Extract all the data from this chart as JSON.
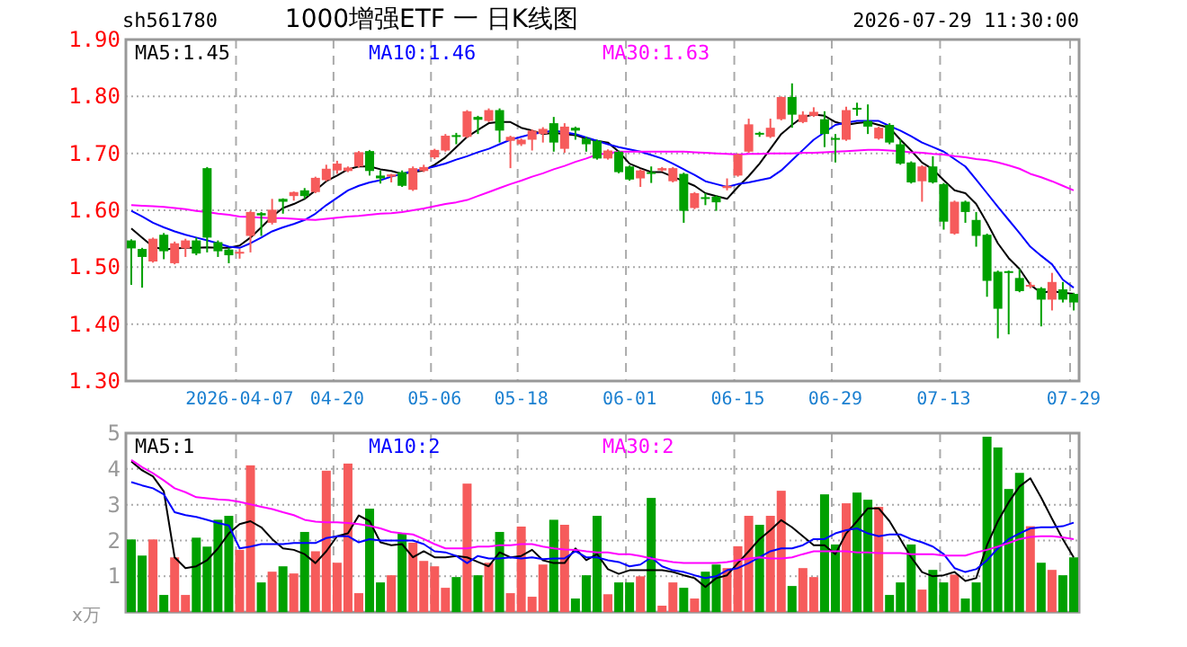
{
  "chart_data": [
    {
      "type": "candlestick",
      "title": "1000增强ETF 一 日K线图",
      "annotations": [
        "sh561780",
        "2026-07-29 11:30:00"
      ],
      "categories": [
        null,
        null,
        null,
        null,
        null,
        null,
        null,
        null,
        null,
        null,
        "2026-04-07",
        null,
        null,
        null,
        null,
        null,
        null,
        null,
        null,
        "04-20",
        null,
        null,
        null,
        null,
        null,
        null,
        null,
        null,
        "05-06",
        null,
        null,
        null,
        null,
        null,
        null,
        null,
        "05-18",
        null,
        null,
        null,
        null,
        null,
        null,
        null,
        null,
        null,
        "06-01",
        null,
        null,
        null,
        null,
        null,
        null,
        null,
        null,
        null,
        "06-15",
        null,
        null,
        null,
        null,
        null,
        null,
        null,
        null,
        "06-29",
        null,
        null,
        null,
        null,
        null,
        null,
        null,
        null,
        null,
        "07-13",
        null,
        null,
        null,
        null,
        null,
        null,
        null,
        null,
        null,
        null,
        null,
        "07-29"
      ],
      "ohlc": [
        [
          1.547,
          1.549,
          1.469,
          1.533
        ],
        [
          1.532,
          1.534,
          1.464,
          1.518
        ],
        [
          1.51,
          1.552,
          1.508,
          1.55
        ],
        [
          1.557,
          1.56,
          1.514,
          1.528
        ],
        [
          1.507,
          1.545,
          1.505,
          1.542
        ],
        [
          1.533,
          1.55,
          1.518,
          1.547
        ],
        [
          1.547,
          1.552,
          1.521,
          1.524
        ],
        [
          1.674,
          1.676,
          1.526,
          1.552
        ],
        [
          1.544,
          1.547,
          1.518,
          1.528
        ],
        [
          1.531,
          1.534,
          1.507,
          1.521
        ],
        [
          1.524,
          1.532,
          1.515,
          1.527
        ],
        [
          1.555,
          1.599,
          1.526,
          1.597
        ],
        [
          1.595,
          1.597,
          1.555,
          1.591
        ],
        [
          1.578,
          1.62,
          1.575,
          1.601
        ],
        [
          1.62,
          1.621,
          1.594,
          1.615
        ],
        [
          1.625,
          1.633,
          1.617,
          1.632
        ],
        [
          1.635,
          1.639,
          1.62,
          1.625
        ],
        [
          1.632,
          1.659,
          1.63,
          1.657
        ],
        [
          1.653,
          1.68,
          1.651,
          1.673
        ],
        [
          1.67,
          1.687,
          1.664,
          1.682
        ],
        [
          1.669,
          1.677,
          1.667,
          1.675
        ],
        [
          1.677,
          1.704,
          1.675,
          1.702
        ],
        [
          1.704,
          1.706,
          1.661,
          1.669
        ],
        [
          1.661,
          1.67,
          1.647,
          1.656
        ],
        [
          1.659,
          1.664,
          1.649,
          1.663
        ],
        [
          1.667,
          1.67,
          1.641,
          1.643
        ],
        [
          1.636,
          1.677,
          1.634,
          1.674
        ],
        [
          1.669,
          1.68,
          1.667,
          1.676
        ],
        [
          1.693,
          1.708,
          1.69,
          1.706
        ],
        [
          1.705,
          1.734,
          1.703,
          1.731
        ],
        [
          1.732,
          1.736,
          1.716,
          1.73
        ],
        [
          1.729,
          1.776,
          1.727,
          1.774
        ],
        [
          1.764,
          1.766,
          1.734,
          1.759
        ],
        [
          1.757,
          1.779,
          1.755,
          1.776
        ],
        [
          1.776,
          1.779,
          1.719,
          1.74
        ],
        [
          1.722,
          1.731,
          1.674,
          1.729
        ],
        [
          1.716,
          1.726,
          1.713,
          1.724
        ],
        [
          1.724,
          1.742,
          1.705,
          1.74
        ],
        [
          1.734,
          1.746,
          1.719,
          1.743
        ],
        [
          1.753,
          1.764,
          1.703,
          1.719
        ],
        [
          1.708,
          1.753,
          1.701,
          1.747
        ],
        [
          1.745,
          1.747,
          1.724,
          1.74
        ],
        [
          1.726,
          1.729,
          1.703,
          1.716
        ],
        [
          1.722,
          1.724,
          1.689,
          1.691
        ],
        [
          1.691,
          1.707,
          1.689,
          1.705
        ],
        [
          1.703,
          1.705,
          1.665,
          1.667
        ],
        [
          1.677,
          1.679,
          1.652,
          1.654
        ],
        [
          1.656,
          1.672,
          1.641,
          1.67
        ],
        [
          1.667,
          1.677,
          1.648,
          1.664
        ],
        [
          1.67,
          1.676,
          1.668,
          1.674
        ],
        [
          1.651,
          1.676,
          1.649,
          1.674
        ],
        [
          1.664,
          1.666,
          1.578,
          1.599
        ],
        [
          1.604,
          1.632,
          1.602,
          1.63
        ],
        [
          1.623,
          1.63,
          1.609,
          1.62
        ],
        [
          1.624,
          1.626,
          1.599,
          1.614
        ],
        [
          1.639,
          1.656,
          1.635,
          1.643
        ],
        [
          1.661,
          1.7,
          1.659,
          1.698
        ],
        [
          1.703,
          1.761,
          1.701,
          1.751
        ],
        [
          1.736,
          1.738,
          1.729,
          1.734
        ],
        [
          1.729,
          1.761,
          1.727,
          1.745
        ],
        [
          1.76,
          1.8,
          1.758,
          1.799
        ],
        [
          1.799,
          1.823,
          1.745,
          1.768
        ],
        [
          1.755,
          1.774,
          1.753,
          1.768
        ],
        [
          1.766,
          1.781,
          1.764,
          1.773
        ],
        [
          1.76,
          1.774,
          1.711,
          1.734
        ],
        [
          1.727,
          1.734,
          1.684,
          1.725
        ],
        [
          1.724,
          1.782,
          1.722,
          1.776
        ],
        [
          1.78,
          1.789,
          1.766,
          1.778
        ],
        [
          1.757,
          1.786,
          1.734,
          1.747
        ],
        [
          1.726,
          1.747,
          1.724,
          1.745
        ],
        [
          1.75,
          1.753,
          1.716,
          1.719
        ],
        [
          1.716,
          1.725,
          1.68,
          1.682
        ],
        [
          1.684,
          1.686,
          1.647,
          1.649
        ],
        [
          1.651,
          1.679,
          1.615,
          1.677
        ],
        [
          1.677,
          1.695,
          1.647,
          1.649
        ],
        [
          1.646,
          1.648,
          1.566,
          1.58
        ],
        [
          1.559,
          1.617,
          1.557,
          1.615
        ],
        [
          1.615,
          1.617,
          1.578,
          1.597
        ],
        [
          1.583,
          1.597,
          1.536,
          1.555
        ],
        [
          1.557,
          1.559,
          1.448,
          1.476
        ],
        [
          1.492,
          1.494,
          1.375,
          1.427
        ],
        [
          1.493,
          1.494,
          1.382,
          1.49
        ],
        [
          1.481,
          1.497,
          1.456,
          1.458
        ],
        [
          1.466,
          1.474,
          1.463,
          1.469
        ],
        [
          1.463,
          1.465,
          1.396,
          1.443
        ],
        [
          1.443,
          1.49,
          1.424,
          1.474
        ],
        [
          1.461,
          1.474,
          1.438,
          1.443
        ],
        [
          1.453,
          1.455,
          1.424,
          1.438
        ]
      ],
      "colors": [
        "#00a000",
        "#00a000",
        "#f65b5b",
        "#00a000",
        "#f65b5b",
        "#f65b5b",
        "#00a000",
        "#00a000",
        "#00a000",
        "#00a000",
        "#f65b5b",
        "#f65b5b",
        "#00a000",
        "#f65b5b",
        "#00a000",
        "#f65b5b",
        "#00a000",
        "#f65b5b",
        "#f65b5b",
        "#f65b5b",
        "#f65b5b",
        "#f65b5b",
        "#00a000",
        "#00a000",
        "#f65b5b",
        "#00a000",
        "#f65b5b",
        "#f65b5b",
        "#f65b5b",
        "#f65b5b",
        "#00a000",
        "#f65b5b",
        "#00a000",
        "#f65b5b",
        "#00a000",
        "#f65b5b",
        "#f65b5b",
        "#f65b5b",
        "#f65b5b",
        "#00a000",
        "#f65b5b",
        "#00a000",
        "#00a000",
        "#00a000",
        "#f65b5b",
        "#00a000",
        "#00a000",
        "#f65b5b",
        "#00a000",
        "#f65b5b",
        "#f65b5b",
        "#00a000",
        "#f65b5b",
        "#00a000",
        "#00a000",
        "#f65b5b",
        "#f65b5b",
        "#f65b5b",
        "#00a000",
        "#f65b5b",
        "#f65b5b",
        "#00a000",
        "#f65b5b",
        "#f65b5b",
        "#00a000",
        "#00a000",
        "#f65b5b",
        "#00a000",
        "#00a000",
        "#f65b5b",
        "#00a000",
        "#00a000",
        "#00a000",
        "#f65b5b",
        "#00a000",
        "#00a000",
        "#f65b5b",
        "#00a000",
        "#00a000",
        "#00a000",
        "#00a000",
        "#00a000",
        "#00a000",
        "#f65b5b",
        "#00a000",
        "#f65b5b",
        "#00a000",
        "#00a000"
      ],
      "series": [
        {
          "type": "line",
          "name": "MA5:1.45",
          "color": "#000000",
          "values": [
            1.568,
            1.552,
            1.536,
            1.531,
            1.533,
            1.534,
            1.534,
            1.535,
            1.534,
            1.534,
            1.538,
            1.552,
            1.57,
            1.589,
            1.604,
            1.611,
            1.62,
            1.635,
            1.651,
            1.661,
            1.672,
            1.677,
            1.677,
            1.672,
            1.669,
            1.664,
            1.667,
            1.67,
            1.68,
            1.693,
            1.711,
            1.729,
            1.741,
            1.753,
            1.755,
            1.755,
            1.745,
            1.74,
            1.734,
            1.736,
            1.734,
            1.732,
            1.726,
            1.722,
            1.719,
            1.703,
            1.682,
            1.674,
            1.667,
            1.667,
            1.659,
            1.651,
            1.643,
            1.63,
            1.625,
            1.62,
            1.641,
            1.66,
            1.682,
            1.708,
            1.734,
            1.75,
            1.764,
            1.768,
            1.766,
            1.755,
            1.75,
            1.753,
            1.755,
            1.75,
            1.745,
            1.724,
            1.705,
            1.684,
            1.672,
            1.653,
            1.635,
            1.63,
            1.611,
            1.578,
            1.542,
            1.516,
            1.497,
            1.469,
            1.455,
            1.458,
            1.455,
            1.453
          ]
        },
        {
          "type": "line",
          "name": "MA10:1.46",
          "color": "#0000ff",
          "values": [
            1.599,
            1.589,
            1.578,
            1.57,
            1.563,
            1.557,
            1.552,
            1.547,
            1.542,
            1.536,
            1.534,
            1.542,
            1.552,
            1.563,
            1.57,
            1.576,
            1.583,
            1.594,
            1.609,
            1.622,
            1.635,
            1.643,
            1.649,
            1.653,
            1.659,
            1.664,
            1.669,
            1.672,
            1.677,
            1.682,
            1.689,
            1.695,
            1.702,
            1.708,
            1.716,
            1.724,
            1.729,
            1.734,
            1.737,
            1.74,
            1.737,
            1.734,
            1.728,
            1.722,
            1.716,
            1.711,
            1.707,
            1.703,
            1.697,
            1.691,
            1.682,
            1.672,
            1.662,
            1.651,
            1.646,
            1.641,
            1.646,
            1.649,
            1.653,
            1.657,
            1.67,
            1.688,
            1.706,
            1.724,
            1.737,
            1.75,
            1.754,
            1.757,
            1.757,
            1.757,
            1.748,
            1.74,
            1.73,
            1.719,
            1.711,
            1.703,
            1.69,
            1.677,
            1.654,
            1.63,
            1.606,
            1.583,
            1.56,
            1.536,
            1.52,
            1.505,
            1.478,
            1.464
          ]
        },
        {
          "type": "line",
          "name": "MA30:1.63",
          "color": "#ff00ff",
          "values": [
            1.609,
            1.608,
            1.607,
            1.606,
            1.604,
            1.602,
            1.599,
            1.597,
            1.594,
            1.592,
            1.589,
            1.588,
            1.587,
            1.586,
            1.586,
            1.585,
            1.584,
            1.583,
            1.585,
            1.587,
            1.589,
            1.59,
            1.592,
            1.594,
            1.595,
            1.597,
            1.6,
            1.603,
            1.607,
            1.611,
            1.614,
            1.618,
            1.625,
            1.632,
            1.639,
            1.646,
            1.652,
            1.659,
            1.665,
            1.672,
            1.678,
            1.685,
            1.691,
            1.698,
            1.7,
            1.703,
            1.703,
            1.703,
            1.703,
            1.703,
            1.703,
            1.703,
            1.702,
            1.701,
            1.7,
            1.699,
            1.698,
            1.699,
            1.699,
            1.7,
            1.7,
            1.7,
            1.701,
            1.701,
            1.702,
            1.703,
            1.704,
            1.705,
            1.706,
            1.706,
            1.705,
            1.704,
            1.702,
            1.701,
            1.699,
            1.698,
            1.695,
            1.693,
            1.69,
            1.688,
            1.684,
            1.679,
            1.673,
            1.664,
            1.658,
            1.651,
            1.643,
            1.635
          ]
        }
      ],
      "ylim": [
        1.3,
        1.9
      ],
      "yticks": [
        {
          "value": 1.3,
          "label": "1.30"
        },
        {
          "value": 1.4,
          "label": "1.40"
        },
        {
          "value": 1.5,
          "label": "1.50"
        },
        {
          "value": 1.6,
          "label": "1.60"
        },
        {
          "value": 1.7,
          "label": "1.70"
        },
        {
          "value": 1.8,
          "label": "1.80"
        },
        {
          "value": 1.9,
          "label": "1.90"
        }
      ],
      "grid": true,
      "legend": "top"
    },
    {
      "type": "bar",
      "ylabel": "x万",
      "tick_labels": "y",
      "categories": [
        null,
        null,
        null,
        null,
        null,
        null,
        null,
        null,
        null,
        null,
        null,
        null,
        null,
        null,
        null,
        null,
        null,
        null,
        null,
        null,
        null,
        null,
        null,
        null,
        null,
        null,
        null,
        null,
        null,
        null,
        null,
        null,
        null,
        null,
        null,
        null,
        null,
        null,
        null,
        null,
        null,
        null,
        null,
        null,
        null,
        null,
        null,
        null,
        null,
        null,
        null,
        null,
        null,
        null,
        null,
        null,
        null,
        null,
        null,
        null,
        null,
        null,
        null,
        null,
        null,
        null,
        null,
        null,
        null,
        null,
        null,
        null,
        null,
        null,
        null,
        null,
        null,
        null,
        null,
        null,
        null,
        null,
        null,
        null,
        null,
        null,
        null,
        null
      ],
      "values": [
        2.03,
        1.58,
        2.03,
        0.48,
        1.53,
        0.48,
        2.08,
        1.83,
        2.58,
        2.69,
        1.74,
        4.1,
        0.83,
        1.13,
        1.28,
        1.08,
        2.24,
        1.7,
        3.95,
        1.38,
        4.15,
        0.53,
        2.89,
        0.83,
        1.03,
        2.19,
        1.94,
        1.43,
        1.28,
        0.68,
        0.98,
        3.59,
        1.03,
        1.38,
        2.24,
        0.53,
        2.39,
        0.43,
        1.33,
        2.58,
        2.44,
        0.38,
        1.03,
        2.69,
        0.5,
        0.83,
        0.83,
        1.0,
        3.19,
        0.18,
        0.83,
        0.68,
        0.38,
        1.13,
        1.33,
        1.23,
        1.84,
        2.69,
        2.44,
        2.69,
        3.39,
        0.73,
        1.23,
        0.98,
        3.29,
        1.89,
        3.04,
        3.34,
        3.14,
        2.94,
        0.48,
        0.83,
        1.89,
        0.63,
        1.18,
        0.83,
        1.05,
        0.38,
        0.83,
        4.9,
        4.6,
        3.44,
        3.89,
        2.4,
        1.38,
        1.18,
        1.03,
        1.53
      ],
      "colors": [
        "#00a000",
        "#00a000",
        "#f65b5b",
        "#00a000",
        "#f65b5b",
        "#f65b5b",
        "#00a000",
        "#00a000",
        "#00a000",
        "#00a000",
        "#f65b5b",
        "#f65b5b",
        "#00a000",
        "#f65b5b",
        "#00a000",
        "#f65b5b",
        "#00a000",
        "#f65b5b",
        "#f65b5b",
        "#f65b5b",
        "#f65b5b",
        "#f65b5b",
        "#00a000",
        "#00a000",
        "#f65b5b",
        "#00a000",
        "#f65b5b",
        "#f65b5b",
        "#f65b5b",
        "#f65b5b",
        "#00a000",
        "#f65b5b",
        "#00a000",
        "#f65b5b",
        "#00a000",
        "#f65b5b",
        "#f65b5b",
        "#f65b5b",
        "#f65b5b",
        "#00a000",
        "#f65b5b",
        "#00a000",
        "#00a000",
        "#00a000",
        "#f65b5b",
        "#00a000",
        "#00a000",
        "#f65b5b",
        "#00a000",
        "#f65b5b",
        "#f65b5b",
        "#00a000",
        "#f65b5b",
        "#00a000",
        "#00a000",
        "#f65b5b",
        "#f65b5b",
        "#f65b5b",
        "#00a000",
        "#f65b5b",
        "#f65b5b",
        "#00a000",
        "#f65b5b",
        "#f65b5b",
        "#00a000",
        "#00a000",
        "#f65b5b",
        "#00a000",
        "#00a000",
        "#f65b5b",
        "#00a000",
        "#00a000",
        "#00a000",
        "#f65b5b",
        "#00a000",
        "#00a000",
        "#f65b5b",
        "#00a000",
        "#00a000",
        "#00a000",
        "#00a000",
        "#00a000",
        "#00a000",
        "#f65b5b",
        "#00a000",
        "#f65b5b",
        "#00a000",
        "#00a000"
      ],
      "series": [
        {
          "type": "line",
          "name": "MA5:1",
          "color": "#000000",
          "values": [
            4.21,
            3.96,
            3.79,
            3.37,
            1.53,
            1.23,
            1.28,
            1.45,
            1.78,
            2.2,
            2.46,
            2.54,
            2.37,
            2.04,
            1.78,
            1.74,
            1.62,
            1.37,
            1.7,
            2.12,
            2.2,
            2.7,
            2.54,
            1.95,
            1.87,
            1.9,
            1.53,
            1.7,
            1.53,
            1.53,
            1.57,
            1.53,
            1.4,
            1.28,
            1.67,
            1.53,
            1.57,
            1.74,
            1.45,
            1.37,
            1.37,
            1.78,
            1.45,
            1.62,
            1.2,
            1.07,
            1.17,
            1.17,
            1.17,
            1.17,
            1.12,
            1.03,
            0.95,
            0.7,
            0.95,
            1.03,
            1.37,
            1.7,
            2.04,
            2.29,
            2.57,
            2.37,
            2.12,
            1.87,
            1.87,
            1.62,
            2.2,
            2.54,
            2.9,
            2.9,
            2.54,
            2.04,
            1.53,
            1.12,
            1.0,
            1.03,
            1.12,
            0.87,
            0.95,
            1.87,
            2.54,
            3.07,
            3.51,
            3.74,
            3.2,
            2.61,
            2.04,
            1.53
          ]
        },
        {
          "type": "line",
          "name": "MA10:2",
          "color": "#0000ff",
          "values": [
            3.63,
            3.54,
            3.46,
            3.29,
            2.79,
            2.71,
            2.66,
            2.58,
            2.49,
            2.42,
            1.78,
            1.83,
            1.9,
            1.9,
            1.9,
            1.93,
            1.93,
            1.93,
            2.07,
            2.12,
            2.12,
            1.95,
            2.04,
            2.0,
            2.0,
            2.0,
            2.0,
            1.9,
            1.7,
            1.67,
            1.57,
            1.37,
            1.57,
            1.5,
            1.5,
            1.53,
            1.5,
            1.53,
            1.48,
            1.5,
            1.5,
            1.7,
            1.53,
            1.53,
            1.45,
            1.4,
            1.28,
            1.33,
            1.53,
            1.28,
            1.17,
            1.12,
            1.03,
            0.95,
            1.0,
            1.17,
            1.23,
            1.37,
            1.53,
            1.7,
            1.78,
            1.78,
            1.87,
            2.04,
            2.04,
            2.2,
            2.29,
            2.34,
            2.2,
            2.12,
            2.17,
            2.17,
            2.04,
            1.95,
            1.83,
            1.62,
            1.23,
            1.12,
            1.2,
            1.45,
            1.78,
            2.04,
            2.2,
            2.34,
            2.37,
            2.37,
            2.4,
            2.5
          ]
        },
        {
          "type": "line",
          "name": "MA30:2",
          "color": "#ff00ff",
          "values": [
            4.25,
            4.05,
            3.88,
            3.68,
            3.46,
            3.35,
            3.21,
            3.18,
            3.15,
            3.13,
            3.08,
            3.01,
            2.94,
            2.88,
            2.79,
            2.71,
            2.58,
            2.53,
            2.51,
            2.51,
            2.49,
            2.46,
            2.41,
            2.34,
            2.24,
            2.2,
            2.17,
            2.04,
            1.9,
            1.78,
            1.78,
            1.78,
            1.83,
            1.83,
            1.87,
            1.87,
            1.9,
            1.9,
            1.83,
            1.78,
            1.75,
            1.74,
            1.7,
            1.67,
            1.67,
            1.62,
            1.62,
            1.57,
            1.5,
            1.45,
            1.4,
            1.37,
            1.37,
            1.37,
            1.37,
            1.4,
            1.45,
            1.5,
            1.53,
            1.5,
            1.5,
            1.53,
            1.62,
            1.7,
            1.7,
            1.7,
            1.7,
            1.67,
            1.67,
            1.65,
            1.65,
            1.65,
            1.62,
            1.62,
            1.62,
            1.58,
            1.58,
            1.58,
            1.67,
            1.74,
            1.83,
            1.93,
            2.04,
            2.1,
            2.12,
            2.12,
            2.09,
            2.04
          ]
        }
      ],
      "ylim": [
        0,
        5
      ],
      "yticks": [
        1,
        2,
        3,
        4,
        5
      ],
      "grid": true,
      "legend": "top"
    }
  ]
}
